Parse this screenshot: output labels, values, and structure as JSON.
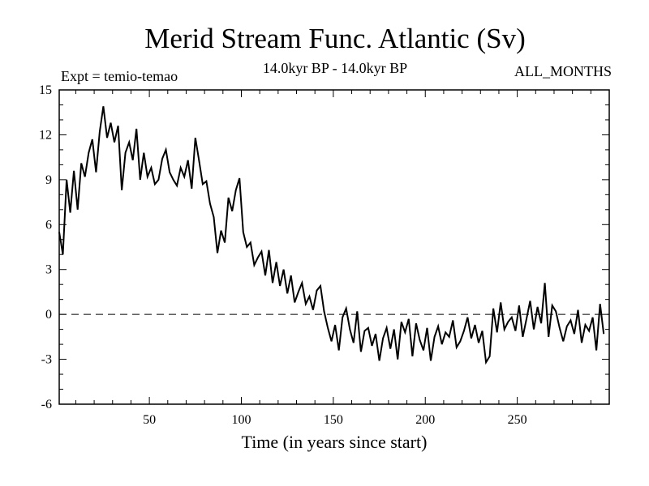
{
  "chart_data": {
    "type": "line",
    "title": "Merid Stream Func. Atlantic (Sv)",
    "subtitle": "14.0kyr BP - 14.0kyr BP",
    "left_annotation": "Expt = temio-temao",
    "right_annotation": "ALL_MONTHS",
    "xlabel": "Time (in years since start)",
    "ylabel": "",
    "xlim": [
      1,
      300
    ],
    "ylim": [
      -6,
      15
    ],
    "x_ticks": [
      50,
      100,
      150,
      200,
      250
    ],
    "x_tick_labels": [
      "50",
      "100",
      "150",
      "200",
      "250"
    ],
    "y_ticks": [
      -6,
      -3,
      0,
      3,
      6,
      9,
      12,
      15
    ],
    "y_tick_labels": [
      "-6",
      "-3",
      "0",
      "3",
      "6",
      "9",
      "12",
      "15"
    ],
    "reference_line": {
      "y": 0,
      "style": "dashed"
    },
    "series": [
      {
        "name": "Merid Stream Func. Atlantic",
        "x_start": 1,
        "x_step": 2,
        "values": [
          5.5,
          4.0,
          9.0,
          6.8,
          9.6,
          7.0,
          10.1,
          9.2,
          10.8,
          11.7,
          9.5,
          12.2,
          13.9,
          11.8,
          12.8,
          11.5,
          12.6,
          8.3,
          10.8,
          11.5,
          10.3,
          12.4,
          9.0,
          10.8,
          9.2,
          9.8,
          8.7,
          9.0,
          10.4,
          11.0,
          9.5,
          9.0,
          8.6,
          9.8,
          9.2,
          10.3,
          8.4,
          11.8,
          10.3,
          8.7,
          8.9,
          7.4,
          6.5,
          4.1,
          5.6,
          4.8,
          7.8,
          6.9,
          8.3,
          9.1,
          5.5,
          4.5,
          4.8,
          3.3,
          3.8,
          4.2,
          2.6,
          4.3,
          2.1,
          3.5,
          1.9,
          3.0,
          1.4,
          2.6,
          0.8,
          1.5,
          2.1,
          0.7,
          1.2,
          0.3,
          1.6,
          1.9,
          0.2,
          -0.9,
          -1.8,
          -0.7,
          -2.4,
          -0.2,
          0.4,
          -1.0,
          -1.9,
          0.2,
          -2.5,
          -1.1,
          -0.9,
          -2.1,
          -1.3,
          -3.1,
          -1.6,
          -0.9,
          -2.3,
          -1.0,
          -3.0,
          -0.5,
          -1.2,
          -0.3,
          -2.8,
          -0.6,
          -1.7,
          -2.4,
          -0.9,
          -3.1,
          -1.5,
          -0.8,
          -2.0,
          -1.2,
          -1.5,
          -0.4,
          -2.2,
          -1.8,
          -1.1,
          -0.2,
          -1.6,
          -0.7,
          -1.9,
          -1.1,
          -3.2,
          -2.8,
          0.4,
          -1.2,
          0.8,
          -1.0,
          -0.5,
          -0.2,
          -1.1,
          0.6,
          -1.5,
          -0.3,
          0.9,
          -1.0,
          0.5,
          -0.6,
          2.1,
          -1.5,
          0.6,
          0.2,
          -0.9,
          -1.8,
          -0.8,
          -0.4,
          -1.3,
          0.3,
          -1.9,
          -0.7,
          -1.1,
          -0.2,
          -2.4,
          0.7,
          -1.3
        ]
      }
    ]
  }
}
